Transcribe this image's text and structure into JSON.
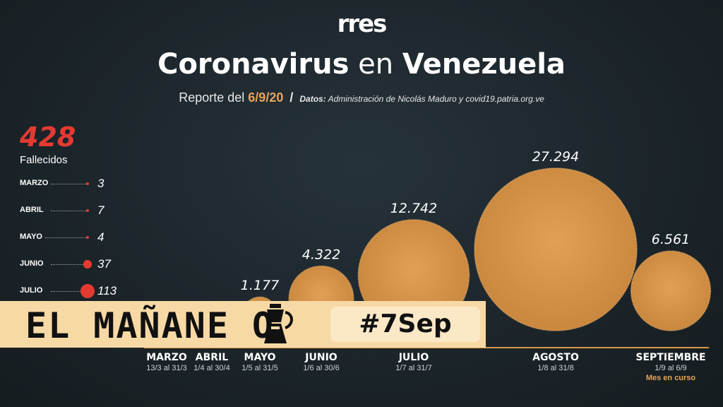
{
  "header": {
    "logo": "rres",
    "title_part1": "Coronavirus",
    "title_part2": "en",
    "title_part3": "Venezuela",
    "report_label": "Reporte del",
    "report_date": "6/9/20",
    "source_label": "Datos:",
    "source_text": "Administración de Nicolás Maduro y covid19.patria.org.ve"
  },
  "deaths": {
    "total": "428",
    "label": "Fallecidos",
    "items": [
      {
        "month": "MARZO",
        "value": 3
      },
      {
        "month": "ABRIL",
        "value": 7
      },
      {
        "month": "MAYO",
        "value": 4
      },
      {
        "month": "JUNIO",
        "value": 37
      },
      {
        "month": "JULIO",
        "value": 113
      }
    ]
  },
  "banner": {
    "title": "EL MAÑANE O",
    "tag": "#7Sep",
    "bg_color": "#f7d9a5",
    "pill_color": "#fbe8c6"
  },
  "colors": {
    "bubble": "#d9974a",
    "bubble_edge": "#f0b873",
    "death_dot": "#e53a31",
    "accent": "#e8a35a"
  },
  "chart_data": {
    "type": "bubble",
    "title": "Coronavirus en Venezuela",
    "categories": [
      "MARZO",
      "ABRIL",
      "MAYO",
      "JUNIO",
      "JULIO",
      "AGOSTO",
      "SEPTIEMBRE"
    ],
    "ranges": [
      "13/3 al 31/3",
      "1/4 al 30/4",
      "1/5 al 31/5",
      "1/6 al 30/6",
      "1/7 al 31/7",
      "1/8 al 31/8",
      "1/9 al 6/9"
    ],
    "values": [
      null,
      null,
      1177,
      4322,
      12742,
      27294,
      6561
    ],
    "labels": [
      "",
      "",
      "1.177",
      "4.322",
      "12.742",
      "27.294",
      "6.561"
    ],
    "notes": [
      "",
      "",
      "",
      "",
      "",
      "",
      "Mes en curso"
    ]
  }
}
